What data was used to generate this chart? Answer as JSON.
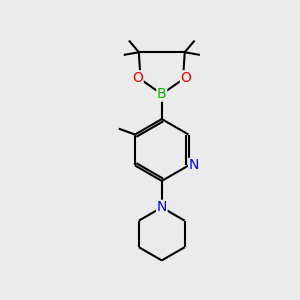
{
  "bg_color": "#ebebeb",
  "line_color": "#000000",
  "bond_width": 1.5,
  "atom_colors": {
    "B": "#00bb00",
    "O": "#ff0000",
    "N_py": "#0000ff",
    "N_pip": "#0000ff"
  },
  "font_size": 9,
  "figsize": [
    3.0,
    3.0
  ],
  "dpi": 100
}
